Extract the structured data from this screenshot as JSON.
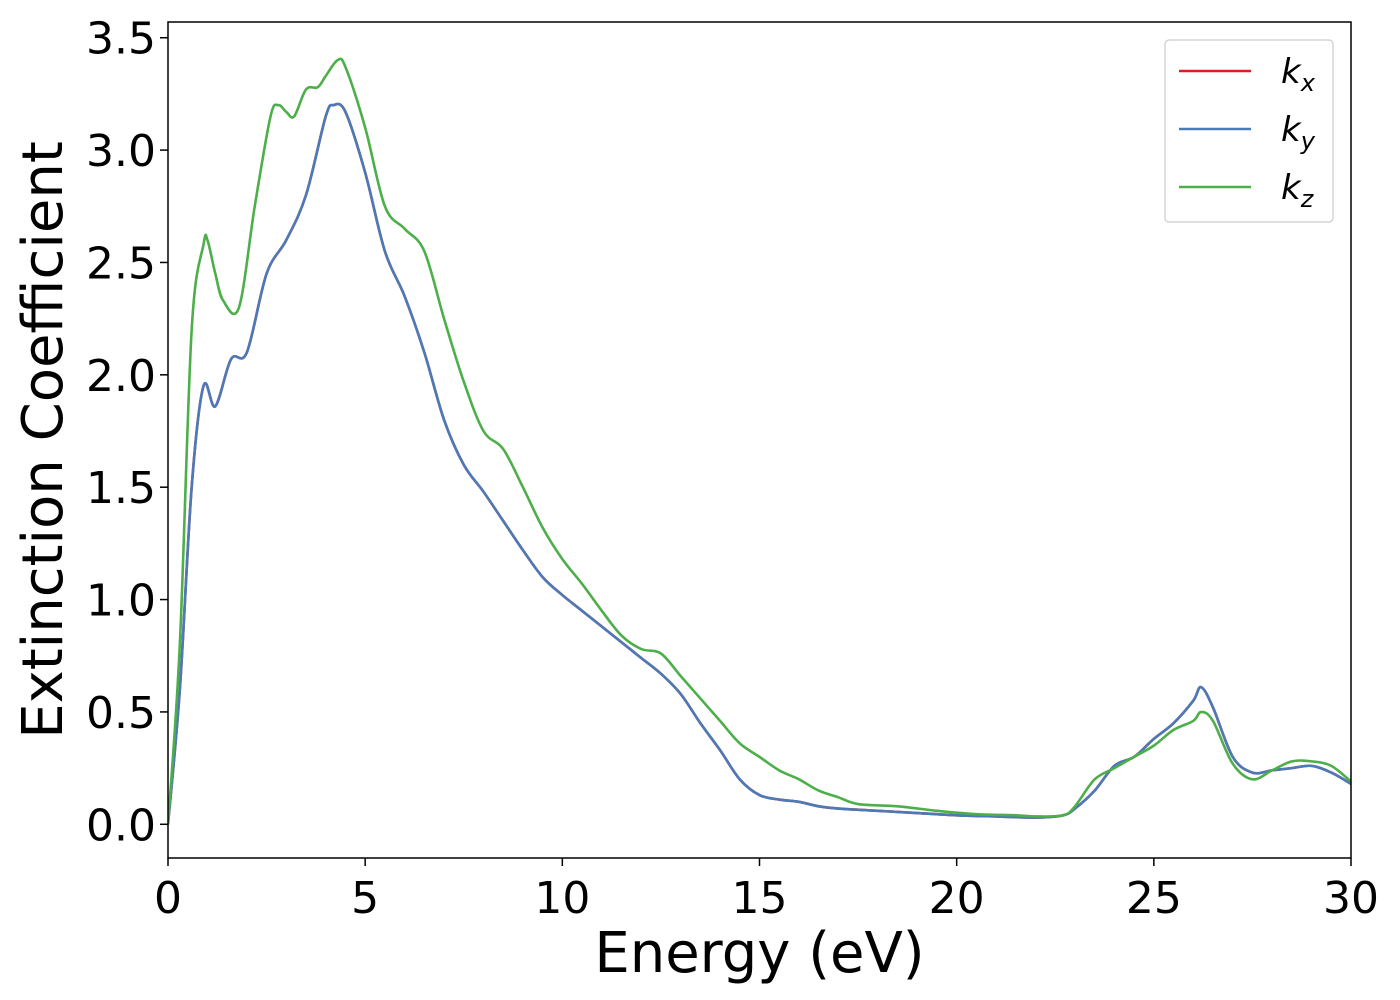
{
  "chart_data": {
    "type": "line",
    "xlabel": "Energy (eV)",
    "ylabel": "Extinction Coefficient",
    "xlim": [
      0,
      30
    ],
    "ylim": [
      -0.15,
      3.57
    ],
    "xticks": [
      0,
      5,
      10,
      15,
      20,
      25,
      30
    ],
    "xtick_labels": [
      "0",
      "5",
      "10",
      "15",
      "20",
      "25",
      "30"
    ],
    "yticks": [
      0.0,
      0.5,
      1.0,
      1.5,
      2.0,
      2.5,
      3.0,
      3.5
    ],
    "ytick_labels": [
      "0.0",
      "0.5",
      "1.0",
      "1.5",
      "2.0",
      "2.5",
      "3.0",
      "3.5"
    ],
    "grid": false,
    "legend_position": "top-right",
    "series": [
      {
        "name": "k",
        "subscript": "x",
        "color": "#e41a1c",
        "x": [
          0,
          0.3,
          0.6,
          0.9,
          1.2,
          1.6,
          2.0,
          2.5,
          3.0,
          3.5,
          4.0,
          4.2,
          4.5,
          5.0,
          5.5,
          6.0,
          6.5,
          7.0,
          7.5,
          8.0,
          8.5,
          9.0,
          9.5,
          10.0,
          10.5,
          11.0,
          11.5,
          12.0,
          12.5,
          13.0,
          13.5,
          14.0,
          14.5,
          15.0,
          15.5,
          16.0,
          16.5,
          17.0,
          18.0,
          19.0,
          20.0,
          21.0,
          22.0,
          22.7,
          23.0,
          23.5,
          24.0,
          24.5,
          25.0,
          25.5,
          26.0,
          26.2,
          26.5,
          27.0,
          27.5,
          28.0,
          28.5,
          29.0,
          29.5,
          30.0
        ],
        "values": [
          0.0,
          0.6,
          1.5,
          1.95,
          1.86,
          2.07,
          2.1,
          2.45,
          2.6,
          2.8,
          3.15,
          3.2,
          3.17,
          2.9,
          2.55,
          2.35,
          2.1,
          1.8,
          1.6,
          1.48,
          1.35,
          1.22,
          1.1,
          1.02,
          0.95,
          0.88,
          0.81,
          0.74,
          0.67,
          0.58,
          0.45,
          0.33,
          0.2,
          0.13,
          0.11,
          0.1,
          0.08,
          0.07,
          0.06,
          0.05,
          0.04,
          0.035,
          0.03,
          0.04,
          0.07,
          0.15,
          0.26,
          0.3,
          0.38,
          0.45,
          0.55,
          0.61,
          0.52,
          0.3,
          0.23,
          0.24,
          0.25,
          0.26,
          0.23,
          0.18
        ]
      },
      {
        "name": "k",
        "subscript": "y",
        "color": "#4a7ab8",
        "x": [
          0,
          0.3,
          0.6,
          0.9,
          1.2,
          1.6,
          2.0,
          2.5,
          3.0,
          3.5,
          4.0,
          4.2,
          4.5,
          5.0,
          5.5,
          6.0,
          6.5,
          7.0,
          7.5,
          8.0,
          8.5,
          9.0,
          9.5,
          10.0,
          10.5,
          11.0,
          11.5,
          12.0,
          12.5,
          13.0,
          13.5,
          14.0,
          14.5,
          15.0,
          15.5,
          16.0,
          16.5,
          17.0,
          18.0,
          19.0,
          20.0,
          21.0,
          22.0,
          22.7,
          23.0,
          23.5,
          24.0,
          24.5,
          25.0,
          25.5,
          26.0,
          26.2,
          26.5,
          27.0,
          27.5,
          28.0,
          28.5,
          29.0,
          29.5,
          30.0
        ],
        "values": [
          0.0,
          0.6,
          1.5,
          1.95,
          1.86,
          2.07,
          2.1,
          2.45,
          2.6,
          2.8,
          3.15,
          3.2,
          3.17,
          2.9,
          2.55,
          2.35,
          2.1,
          1.8,
          1.6,
          1.48,
          1.35,
          1.22,
          1.1,
          1.02,
          0.95,
          0.88,
          0.81,
          0.74,
          0.67,
          0.58,
          0.45,
          0.33,
          0.2,
          0.13,
          0.11,
          0.1,
          0.08,
          0.07,
          0.06,
          0.05,
          0.04,
          0.035,
          0.03,
          0.04,
          0.07,
          0.15,
          0.26,
          0.3,
          0.38,
          0.45,
          0.55,
          0.61,
          0.52,
          0.3,
          0.23,
          0.24,
          0.25,
          0.26,
          0.23,
          0.18
        ]
      },
      {
        "name": "k",
        "subscript": "z",
        "color": "#4daf4a",
        "x": [
          0,
          0.3,
          0.6,
          0.9,
          1.0,
          1.2,
          1.4,
          1.8,
          2.2,
          2.6,
          2.8,
          3.0,
          3.2,
          3.5,
          3.8,
          4.0,
          4.3,
          4.5,
          5.0,
          5.5,
          6.0,
          6.5,
          7.0,
          7.5,
          8.0,
          8.5,
          9.0,
          9.5,
          10.0,
          10.5,
          11.0,
          11.5,
          12.0,
          12.5,
          13.0,
          13.5,
          14.0,
          14.5,
          15.0,
          15.5,
          16.0,
          16.5,
          17.0,
          17.5,
          18.5,
          19.5,
          20.5,
          21.5,
          22.0,
          22.7,
          23.0,
          23.5,
          24.0,
          24.5,
          25.0,
          25.5,
          26.0,
          26.2,
          26.5,
          27.0,
          27.5,
          28.0,
          28.5,
          29.0,
          29.5,
          30.0
        ],
        "values": [
          0.0,
          0.8,
          2.2,
          2.58,
          2.6,
          2.45,
          2.33,
          2.3,
          2.75,
          3.15,
          3.2,
          3.17,
          3.15,
          3.27,
          3.28,
          3.33,
          3.4,
          3.37,
          3.1,
          2.75,
          2.65,
          2.55,
          2.25,
          1.97,
          1.75,
          1.67,
          1.5,
          1.32,
          1.18,
          1.07,
          0.95,
          0.84,
          0.78,
          0.76,
          0.66,
          0.56,
          0.46,
          0.36,
          0.3,
          0.24,
          0.2,
          0.15,
          0.12,
          0.09,
          0.08,
          0.06,
          0.045,
          0.04,
          0.035,
          0.04,
          0.08,
          0.2,
          0.25,
          0.3,
          0.35,
          0.42,
          0.46,
          0.5,
          0.46,
          0.27,
          0.2,
          0.24,
          0.28,
          0.28,
          0.26,
          0.19
        ]
      }
    ]
  }
}
